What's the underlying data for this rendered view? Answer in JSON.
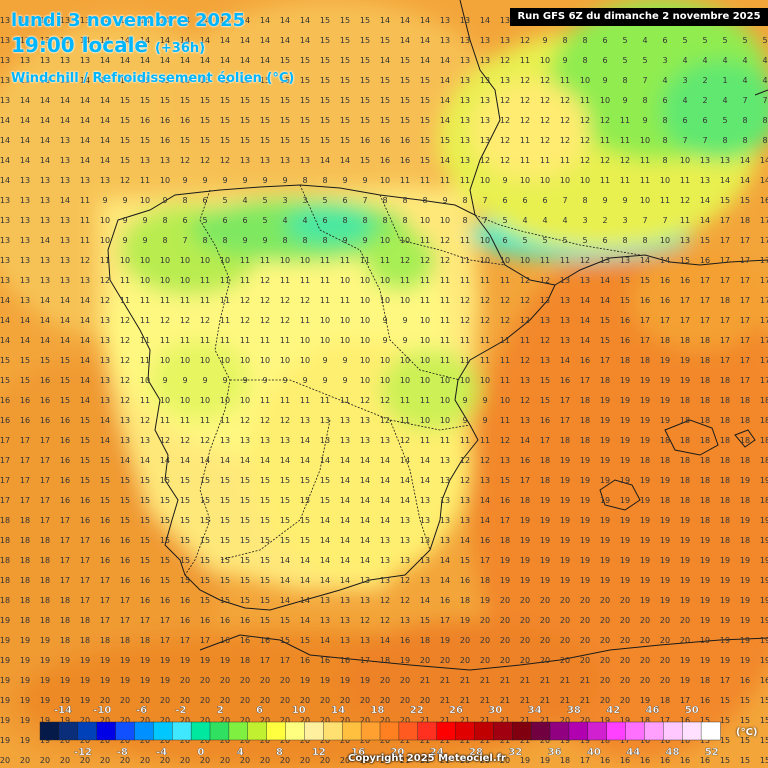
{
  "header": {
    "date_line": "lundi 3 novembre 2025",
    "time_line": "19:00 locale",
    "lead_time": "(+36h)",
    "parameter": "Windchill / Refroidissement éolien (°C)"
  },
  "run_label": "Run GFS 6Z du dimanche 2 novembre 2025",
  "copyright": "Copyright 2025 Meteociel.fr",
  "legend": {
    "unit": "(°C)",
    "top_labels": [
      "-14",
      "-10",
      "-6",
      "-2",
      "2",
      "6",
      "10",
      "14",
      "18",
      "22",
      "26",
      "30",
      "34",
      "38",
      "42",
      "46",
      "50"
    ],
    "bottom_labels": [
      "-12",
      "-8",
      "-4",
      "0",
      "4",
      "8",
      "12",
      "16",
      "20",
      "24",
      "28",
      "32",
      "36",
      "40",
      "44",
      "48",
      "52"
    ],
    "colors": [
      "#061a4a",
      "#0a2e7a",
      "#0040b8",
      "#0000e6",
      "#1050ff",
      "#0090ff",
      "#00c8ff",
      "#40e8ff",
      "#00e8a0",
      "#30e060",
      "#80f040",
      "#c0f030",
      "#ffff40",
      "#ffff80",
      "#fff0a0",
      "#ffe070",
      "#ffc040",
      "#ffa030",
      "#ff8020",
      "#ff5a20",
      "#ff3020",
      "#ff0000",
      "#e00000",
      "#c00000",
      "#a00010",
      "#800010",
      "#700040",
      "#900080",
      "#b000b0",
      "#d020d0",
      "#ff40ff",
      "#ff70ff",
      "#ffa0ff",
      "#ffc8ff",
      "#ffe0ff",
      "#ffffff"
    ]
  },
  "grid": {
    "rows": [
      "13 13 13 13 13 14 14 14 14 14 14 14 14 14 14 14 15 15 15 14 14 14 13 13 14 13 11 11 10 10 9 8 7 6 6 5 5 5 5",
      "13 13 13 13 14 14 14 14 14 14 14 14 14 14 14 14 15 15 15 15 14 14 13 13 13 13 12 9 8 8 6 5 4 6 5 5 5 5 5",
      "13 13 13 13 13 14 14 14 14 14 14 14 14 14 15 15 15 15 15 14 15 14 14 13 13 12 11 10 9 8 6 5 5 3 4 4 4 4 4",
      "13 13 13 13 14 14 14 15 15 15 15 15 15 15 15 15 15 15 15 15 15 15 14 13 13 13 12 12 11 10 9 8 7 4 3 2 1 4 4",
      "13 14 14 14 14 14 15 15 15 15 15 15 15 15 15 15 15 15 15 15 15 15 14 13 13 12 12 12 12 11 10 9 8 6 4 2 4 7 7",
      "14 14 14 14 14 14 15 16 16 16 15 15 15 15 15 15 15 15 15 15 15 15 14 13 13 12 12 12 12 12 12 11 9 8 6 6 5 8 8",
      "14 14 14 13 14 14 15 15 16 15 15 15 15 15 15 15 15 15 16 16 16 15 15 13 13 12 11 12 12 12 11 11 10 8 7 7 8 8 8",
      "14 14 14 13 14 14 15 13 13 12 12 12 13 13 13 13 14 14 15 16 16 15 14 13 12 12 11 11 11 12 12 12 11 8 10 13 13 14 14",
      "14 13 13 13 13 13 12 11 10 9 9 9 9 9 9 8 8 9 9 10 11 11 11 11 10 9 10 10 10 10 11 11 11 10 11 13 14 14 14",
      "13 13 13 14 11 9 9 10 9 8 6 5 4 5 3 3 5 6 7 8 8 8 9 8 7 6 6 6 7 8 9 9 10 11 12 14 15 15 16",
      "13 13 13 13 11 10 9 9 8 6 5 6 6 5 4 4 6 8 8 8 8 10 10 8 7 5 4 4 4 3 2 3 7 7 11 14 17 18 17",
      "13 13 14 13 11 10 9 9 8 7 8 8 9 9 8 8 8 9 9 10 10 11 12 11 10 6 5 5 5 5 6 8 8 10 13 15 17 17 17",
      "13 13 13 13 12 11 10 10 10 10 10 10 11 11 10 10 11 11 11 11 12 12 12 11 10 10 10 11 11 12 13 13 14 14 15 16 17 17 17",
      "13 13 13 13 13 12 11 10 10 10 11 11 11 12 11 11 11 10 10 10 11 11 11 11 11 11 12 12 13 13 14 15 15 16 16 17 17 17 17",
      "14 13 14 14 14 12 11 11 11 11 11 11 12 12 12 12 11 11 10 10 10 11 11 12 12 12 12 13 13 14 14 15 16 16 17 17 18 17 17",
      "14 14 14 14 14 13 12 11 12 12 12 11 12 12 12 11 10 10 10 9 9 10 11 12 12 12 12 13 13 14 15 16 17 17 17 17 17 17 17",
      "14 14 14 14 14 13 12 11 11 11 11 11 11 11 11 10 10 10 10 9 9 10 11 11 11 11 11 12 13 14 15 16 17 18 18 18 17 17 17",
      "15 15 15 15 14 13 12 11 10 10 10 10 10 10 10 10 9 9 10 10 10 10 11 11 11 11 12 13 14 16 17 18 18 19 19 18 17 17 17",
      "15 15 16 15 14 13 12 10 9 9 9 9 9 9 9 9 9 9 10 10 10 10 10 10 10 11 13 15 16 17 18 19 19 19 19 18 18 17 17",
      "16 16 16 15 14 13 12 11 10 10 10 10 10 11 11 11 11 11 12 12 11 11 10 9 9 10 12 15 17 18 19 19 19 19 18 18 18 18 18",
      "16 16 16 16 15 14 13 12 11 11 11 11 12 12 12 13 13 13 13 12 11 10 10 9 9 11 13 16 17 18 19 19 19 19 18 18 18 18 18",
      "17 17 17 16 15 14 13 13 12 12 12 13 13 13 13 14 13 13 13 13 12 11 11 11 11 12 14 17 18 18 19 19 19 18 18 18 18 18 18",
      "17 17 17 16 15 15 14 14 14 14 14 14 14 14 14 14 14 14 14 14 14 14 13 12 12 13 16 18 19 19 19 19 18 18 18 18 18 18 18",
      "17 17 17 16 15 15 15 15 15 15 15 15 15 15 15 15 15 14 14 14 14 14 13 12 13 15 17 18 19 19 19 19 19 19 18 18 18 19 19",
      "17 17 17 16 16 15 15 15 15 15 15 15 15 15 15 15 15 14 14 14 14 13 13 13 14 16 18 19 19 19 19 19 19 18 18 18 18 18 18",
      "18 18 17 17 16 16 15 15 15 15 15 15 15 15 15 15 14 14 14 14 13 13 13 13 14 17 19 19 19 19 19 19 19 19 19 18 18 19 19",
      "18 18 18 17 17 16 16 15 15 15 15 15 15 15 15 15 14 14 14 13 13 13 13 14 16 18 19 19 19 19 19 19 19 19 19 19 18 18 19",
      "18 18 18 17 17 16 16 15 15 15 15 15 15 15 14 14 14 14 14 13 13 13 14 15 17 19 19 19 19 19 19 19 19 19 19 19 19 19 19",
      "18 18 18 17 17 17 16 16 15 15 15 15 15 15 14 14 14 14 13 13 12 13 14 16 18 19 19 19 19 19 19 19 19 19 19 19 19 19 19",
      "18 18 18 18 17 17 17 16 16 16 15 15 15 15 14 14 13 13 13 12 12 14 16 18 19 20 20 20 20 20 20 20 19 19 19 19 19 19 19",
      "19 18 18 18 18 17 17 17 17 16 16 16 16 15 15 14 13 13 12 12 13 15 17 19 20 20 20 20 20 20 20 20 20 20 20 19 19 19 19",
      "19 19 19 18 18 18 18 18 17 17 17 16 16 16 15 15 14 13 13 14 16 18 19 20 20 20 20 20 20 20 20 20 20 20 20 19 19 19 19",
      "19 19 19 19 19 19 19 19 19 19 19 19 18 17 17 16 16 16 17 18 19 20 20 20 20 20 20 20 20 20 20 20 20 20 19 19 19 19 19",
      "19 19 19 19 19 19 19 19 19 20 20 20 20 20 20 19 19 19 19 20 20 21 21 21 21 21 21 21 21 21 20 20 20 20 19 18 17 16 16",
      "19 19 19 19 19 20 20 20 20 20 20 20 20 20 20 20 20 20 20 20 20 20 21 21 21 21 21 21 21 21 20 20 19 18 17 16 15 15 15",
      "19 19 19 19 20 20 20 20 20 20 20 20 20 20 20 20 20 20 20 20 20 21 21 21 21 21 21 21 20 20 19 19 18 17 16 15 15 15 15",
      "19 19 19 20 20 20 20 20 20 20 20 20 20 20 20 20 20 20 20 20 21 21 21 21 21 21 21 20 19 19 18 17 16 16 16 15 15 15 15",
      "20 20 20 20 20 20 20 20 20 20 20 20 20 20 20 20 20 20 20 20 21 21 21 20 20 20 19 19 18 17 16 16 16 16 16 16 15 15 15",
      "20 20 20 20 20 20 20 20 20 20 20 20 20 20 20 20 20 20 20 20 20 20 20 20 20 20 19 18 17 16 16 16 16 16 16 16 16 16 16"
    ]
  }
}
